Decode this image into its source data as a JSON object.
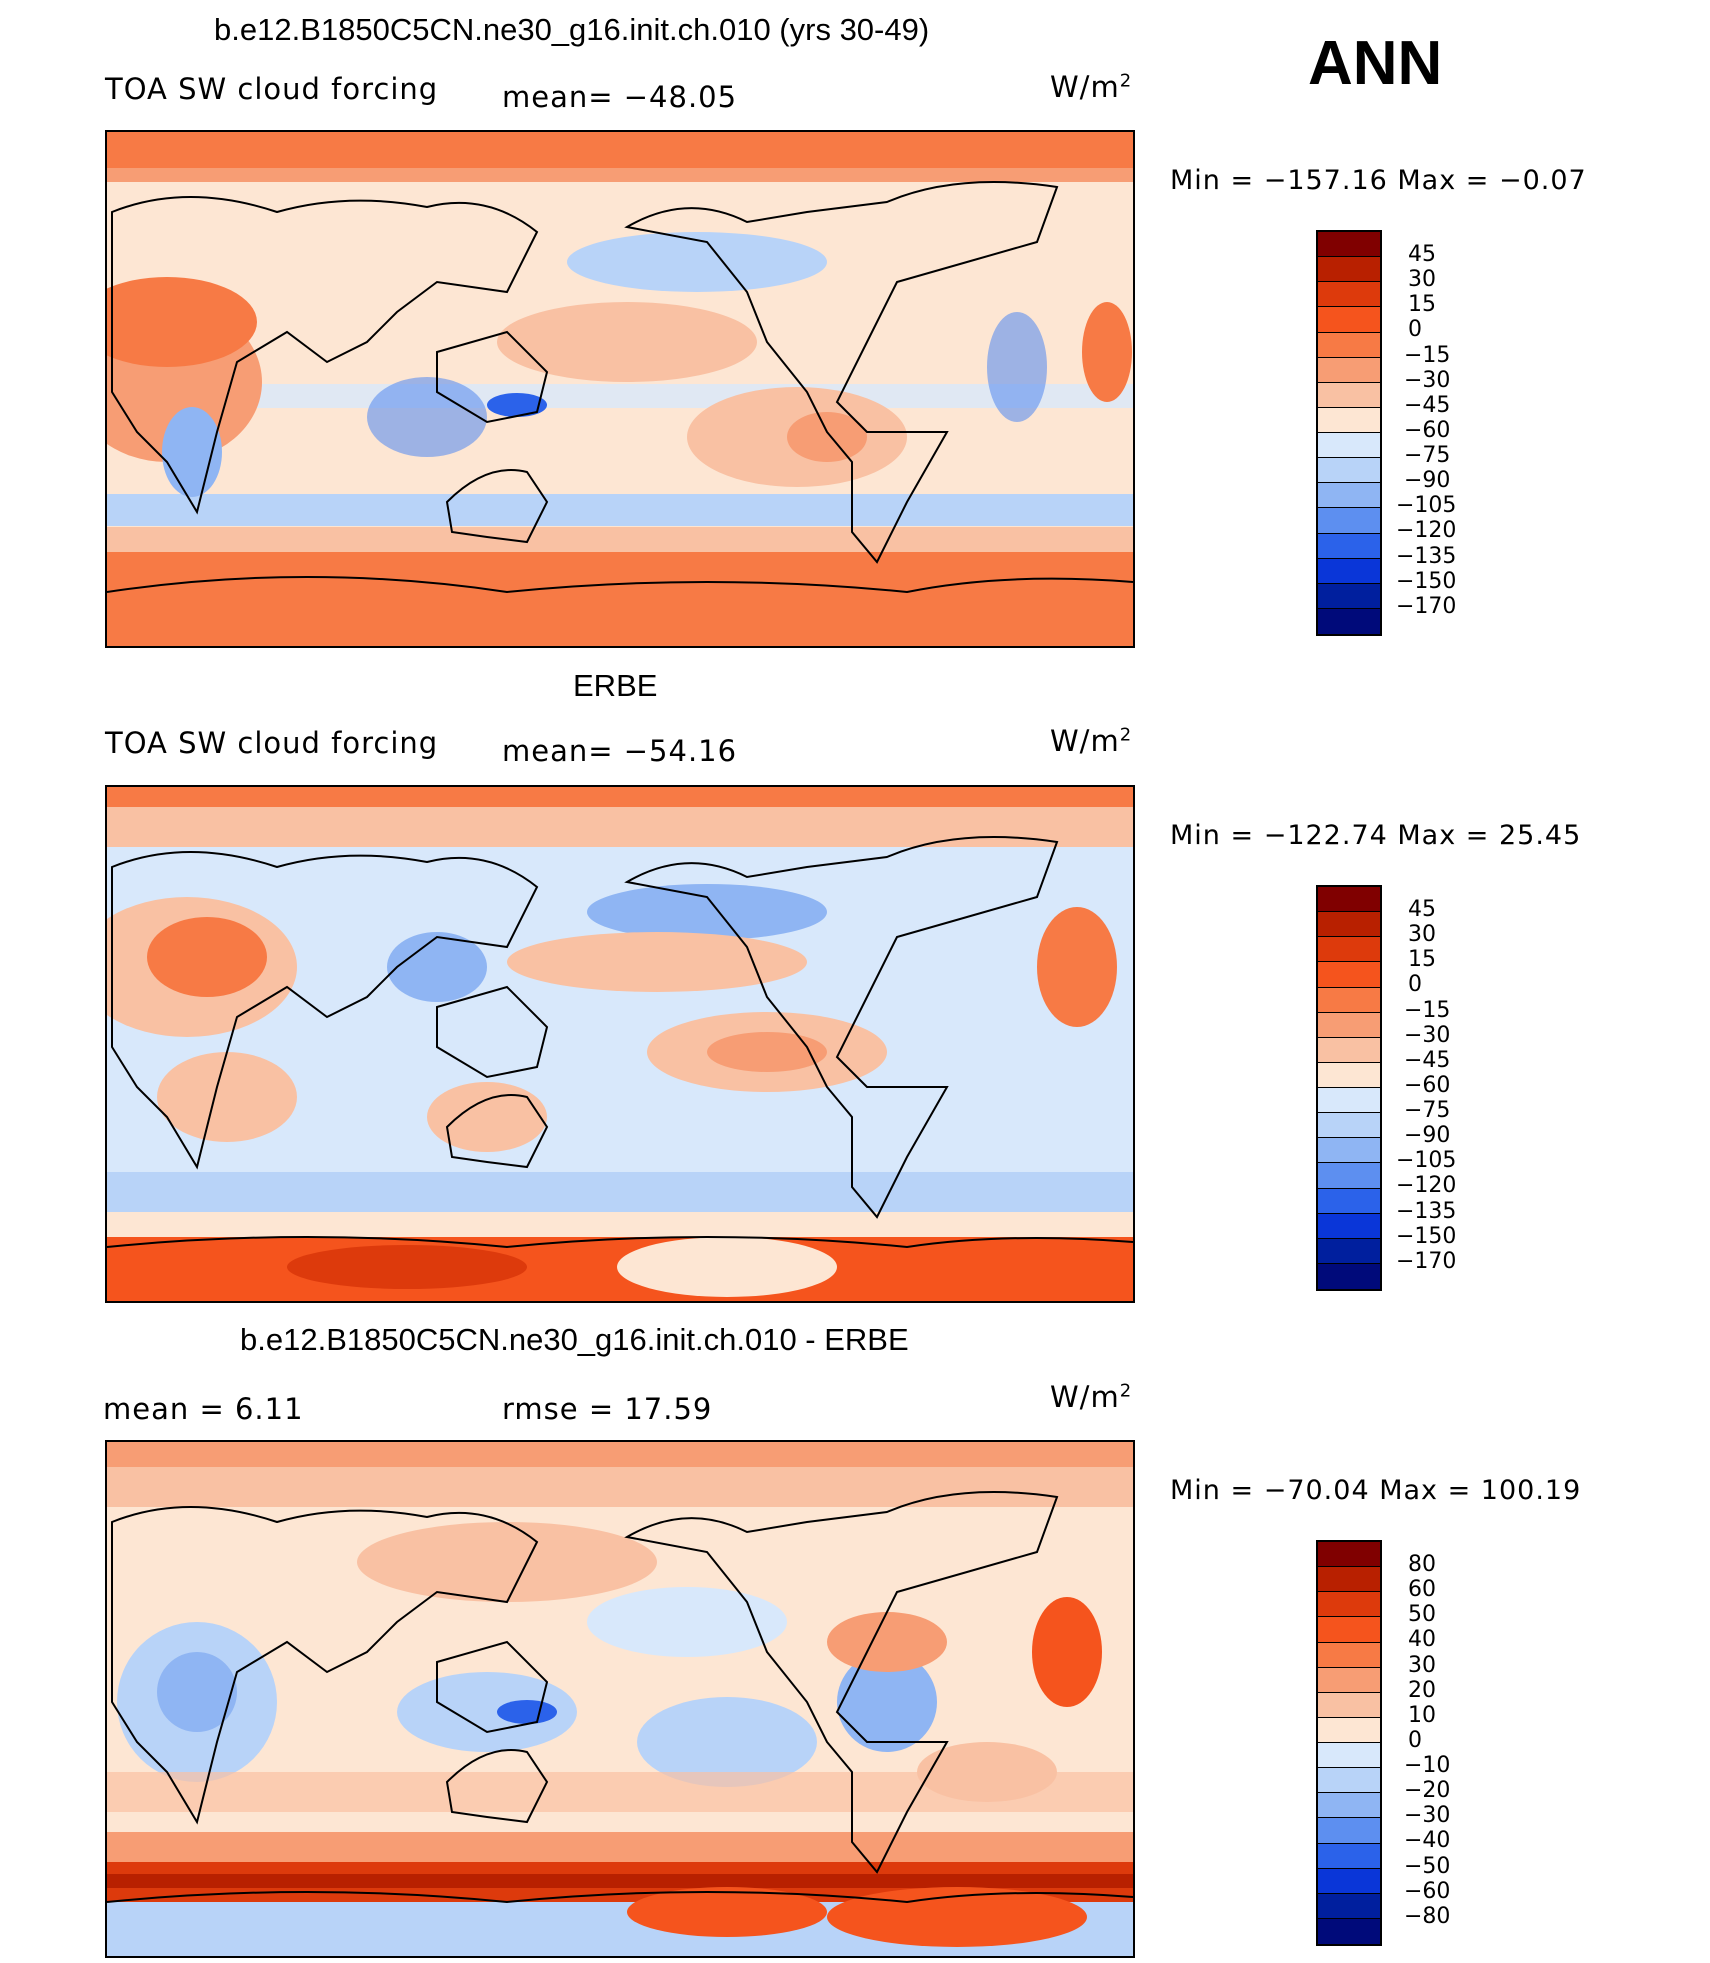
{
  "season": "ANN",
  "unit_text": "W/m",
  "unit_exponent": "2",
  "panels": [
    {
      "title": "b.e12.B1850C5CN.ne30_g16.init.ch.010 (yrs 30-49)",
      "left_label": "TOA SW cloud forcing",
      "center_label": "mean= −48.05",
      "minmax": "Min  =  −157.16  Max  =    −0.07",
      "levels": [
        "45",
        "30",
        "15",
        "0",
        "−15",
        "−30",
        "−45",
        "−60",
        "−75",
        "−90",
        "−105",
        "−120",
        "−135",
        "−150",
        "−170"
      ]
    },
    {
      "title": "ERBE",
      "left_label": "TOA SW cloud forcing",
      "center_label": "mean= −54.16",
      "minmax": "Min  =  −122.74  Max  =    25.45",
      "levels": [
        "45",
        "30",
        "15",
        "0",
        "−15",
        "−30",
        "−45",
        "−60",
        "−75",
        "−90",
        "−105",
        "−120",
        "−135",
        "−150",
        "−170"
      ]
    },
    {
      "title": "b.e12.B1850C5CN.ne30_g16.init.ch.010 - ERBE",
      "left_label": "mean  =     6.11",
      "center_label": "rmse  =    17.59",
      "minmax": "Min  =  −70.04  Max  =  100.19",
      "levels": [
        "80",
        "60",
        "50",
        "40",
        "30",
        "20",
        "10",
        "0",
        "−10",
        "−20",
        "−30",
        "−40",
        "−50",
        "−60",
        "−80"
      ]
    }
  ],
  "colors": {
    "palette": [
      "#800000",
      "#b82000",
      "#dd3a0c",
      "#f5541d",
      "#f77a45",
      "#f79d74",
      "#f9c1a3",
      "#fde6d3",
      "#d8e8fb",
      "#b8d3f8",
      "#8fb5f3",
      "#5d8ff0",
      "#2b62ea",
      "#0a36d8",
      "#001f9e",
      "#000a7a"
    ],
    "continent_outline": "#000000"
  }
}
